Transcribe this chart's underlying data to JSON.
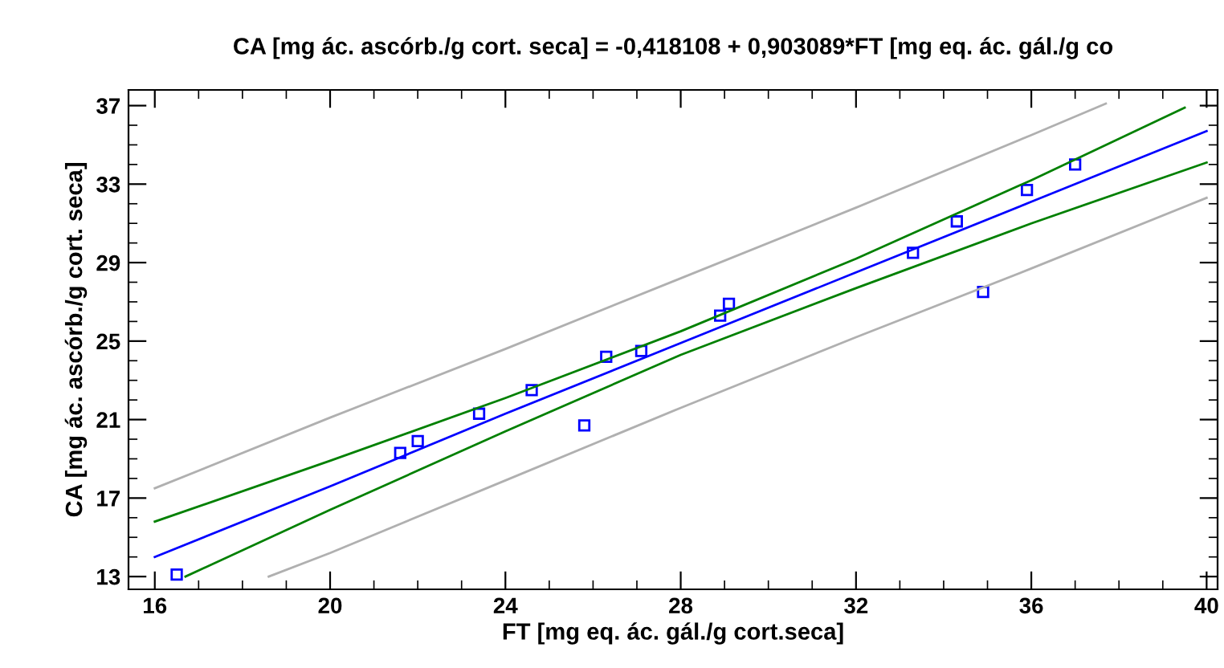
{
  "chart_data": {
    "type": "scatter",
    "title": "CA [mg ác. ascórb./g cort. seca] = -0,418108 + 0,903089*FT [mg eq. ác. gál./g co",
    "xlabel": "FT [mg eq. ác. gál./g cort.seca]",
    "ylabel": "CA [mg ác. ascórb./g cort. seca]",
    "xlim": [
      15.4,
      40.25
    ],
    "ylim": [
      12.35,
      37.8
    ],
    "xticks": [
      16,
      20,
      24,
      28,
      32,
      36,
      40
    ],
    "yticks": [
      13,
      17,
      21,
      25,
      29,
      33,
      37
    ],
    "grid": false,
    "legend": false,
    "series": [
      {
        "color": "#0000ff",
        "marker": "square",
        "x": [
          16.5,
          21.6,
          22.0,
          23.4,
          24.6,
          25.8,
          26.3,
          27.1,
          28.9,
          29.1,
          33.3,
          34.3,
          34.9,
          35.9,
          37.0
        ],
        "values": [
          13.1,
          19.3,
          19.9,
          21.3,
          22.5,
          20.7,
          24.2,
          24.5,
          26.3,
          26.9,
          29.5,
          31.1,
          27.5,
          32.7,
          34.0
        ]
      },
      {
        "type": "line",
        "color": "#0000ff",
        "x": [
          16,
          20,
          24,
          28,
          32,
          36,
          40
        ],
        "values": [
          14.0,
          17.6,
          21.3,
          24.9,
          28.5,
          32.1,
          35.7
        ]
      },
      {
        "type": "line",
        "color": "#008000",
        "x": [
          16,
          20,
          24,
          28,
          32,
          36,
          39.5
        ],
        "values": [
          15.8,
          18.9,
          22.1,
          25.5,
          29.2,
          33.2,
          36.9
        ]
      },
      {
        "type": "line",
        "color": "#008000",
        "x": [
          16.7,
          20,
          24,
          28,
          32,
          36,
          40
        ],
        "values": [
          13.0,
          16.4,
          20.4,
          24.3,
          27.7,
          31.0,
          34.1
        ]
      },
      {
        "type": "line",
        "color": "#b0b0b0",
        "x": [
          16,
          20,
          24,
          28,
          32,
          36,
          37.7
        ],
        "values": [
          17.5,
          21.1,
          24.6,
          28.2,
          31.8,
          35.5,
          37.1
        ]
      },
      {
        "type": "line",
        "color": "#b0b0b0",
        "x": [
          18.6,
          20,
          24,
          28,
          32,
          36,
          40
        ],
        "values": [
          13.0,
          14.2,
          17.9,
          21.6,
          25.2,
          28.7,
          32.3
        ]
      }
    ]
  }
}
